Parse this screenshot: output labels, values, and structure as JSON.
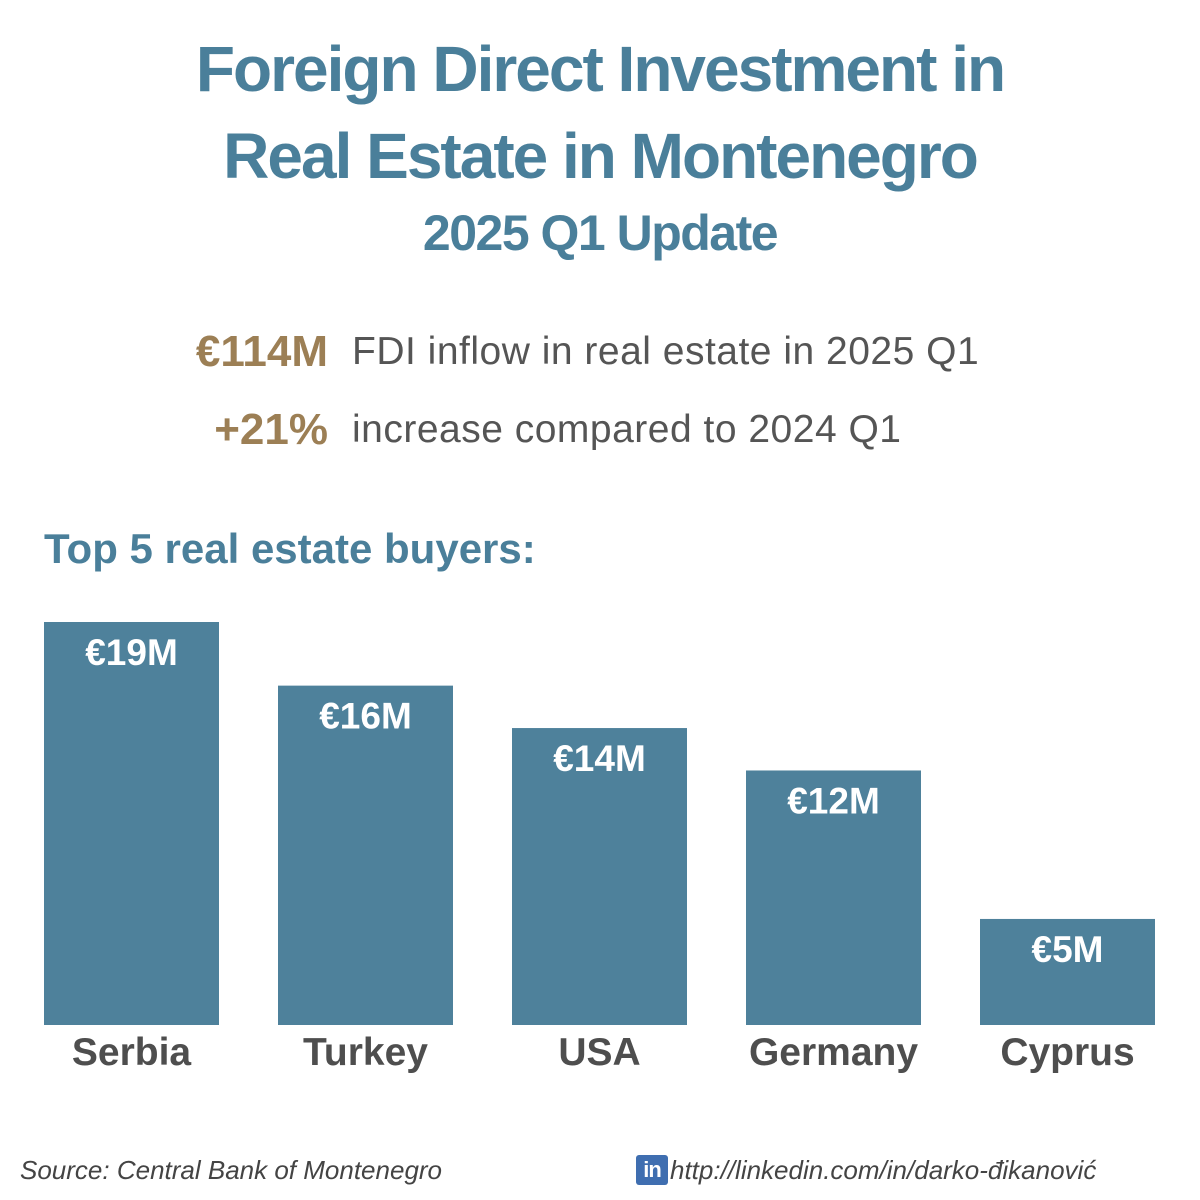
{
  "title": {
    "line1": "Foreign Direct Investment in",
    "line2": "Real Estate in Montenegro",
    "subtitle": "2025 Q1 Update"
  },
  "stats": [
    {
      "value": "€114M",
      "description": "FDI inflow in real estate in 2025  Q1"
    },
    {
      "value": "+21%",
      "description": "increase compared to 2024 Q1"
    }
  ],
  "section_heading": "Top 5 real estate buyers:",
  "chart_data": {
    "type": "bar",
    "title": "Top 5 real estate buyers:",
    "categories": [
      "Serbia",
      "Turkey",
      "USA",
      "Germany",
      "Cyprus"
    ],
    "values": [
      19,
      16,
      14,
      12,
      5
    ],
    "value_labels": [
      "€19M",
      "€16M",
      "€14M",
      "€12M",
      "€5M"
    ],
    "unit": "€M",
    "xlabel": "",
    "ylabel": "",
    "ylim": [
      0,
      19
    ],
    "grid": false,
    "legend": "none"
  },
  "footer": {
    "source": "Source: Central Bank of Montenegro",
    "linkedin_icon": "in",
    "link": "http://linkedin.com/in/darko-đikanović"
  },
  "colors": {
    "title": "#4a7f9a",
    "accent": "#9c7f55",
    "bar": "#4e819b",
    "text": "#555555"
  },
  "icons": [
    "linkedin-icon"
  ]
}
